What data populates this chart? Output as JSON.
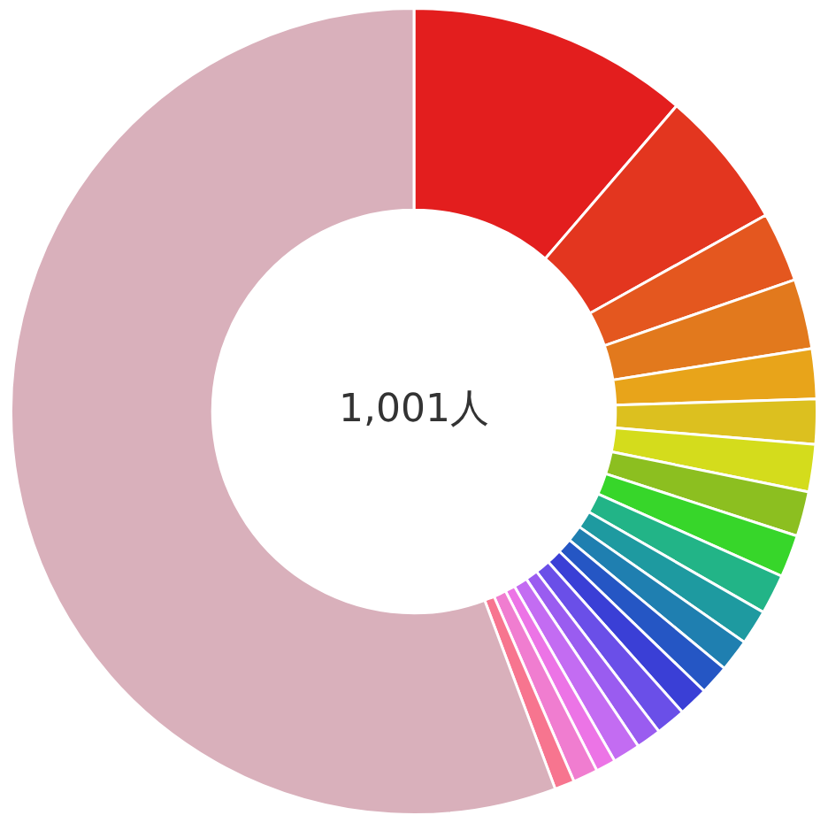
{
  "chart_data": {
    "type": "donut",
    "categories": [
      null,
      null,
      null,
      null,
      null,
      null,
      null,
      null,
      null,
      null,
      null,
      null,
      null,
      null,
      null,
      null,
      null,
      null,
      null,
      null,
      null
    ],
    "values": [
      11.3,
      5.6,
      2.8,
      2.8,
      2.0,
      1.8,
      1.9,
      1.8,
      1.7,
      1.6,
      1.4,
      1.3,
      1.2,
      1.2,
      1.2,
      1.0,
      1.1,
      0.8,
      1.0,
      0.8,
      55.7
    ],
    "colors": [
      "#e31e1e",
      "#e3361f",
      "#e4571f",
      "#e2791d",
      "#e8a41a",
      "#dcc01f",
      "#d4dc1c",
      "#8cbf20",
      "#37d62a",
      "#22b487",
      "#1e9aa0",
      "#1f7fb0",
      "#2556c4",
      "#3a3fd6",
      "#6a4fe8",
      "#9a5cf0",
      "#c36cf2",
      "#ec74e6",
      "#f07dd0",
      "#f7758f",
      "#d9b0bb"
    ],
    "annotations": [
      "1,001人"
    ],
    "legend": false
  }
}
